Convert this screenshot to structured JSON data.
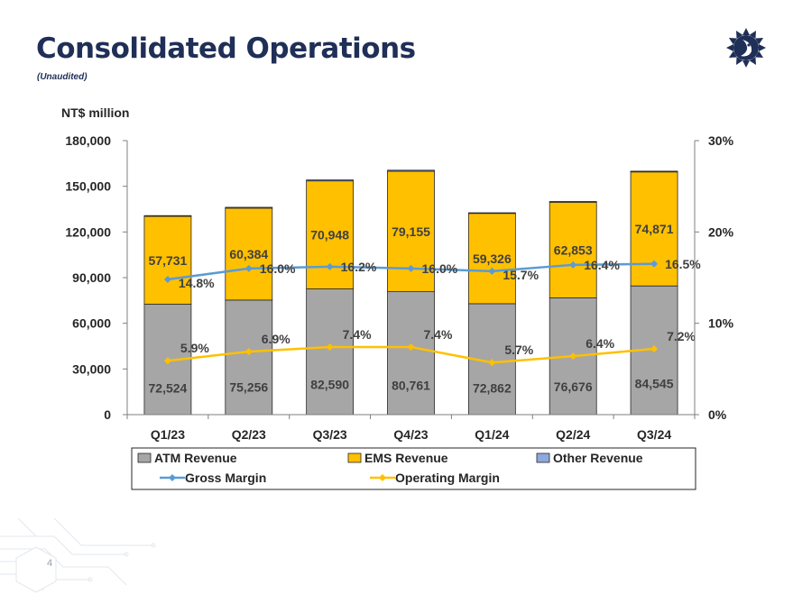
{
  "page": {
    "title": "Consolidated Operations",
    "subtitle": "(Unaudited)",
    "page_number": "4",
    "logo_icon": "sun-logo-icon"
  },
  "chart_data": {
    "type": "bar",
    "stacked": true,
    "categories": [
      "Q1/23",
      "Q2/23",
      "Q3/23",
      "Q4/23",
      "Q1/24",
      "Q2/24",
      "Q3/24"
    ],
    "unit_label": "NT$ million",
    "y_left": {
      "min": 0,
      "max": 180000,
      "ticks": [
        0,
        30000,
        60000,
        90000,
        120000,
        150000,
        180000
      ],
      "tick_labels": [
        "0",
        "30,000",
        "60,000",
        "90,000",
        "120,000",
        "150,000",
        "180,000"
      ]
    },
    "y_right": {
      "min": 0,
      "max": 30,
      "ticks": [
        0,
        10,
        20,
        30
      ],
      "tick_labels": [
        "0%",
        "10%",
        "20%",
        "30%"
      ]
    },
    "series": [
      {
        "name": "ATM Revenue",
        "kind": "bar",
        "color": "#a6a6a6",
        "values": [
          72524,
          75256,
          82590,
          80761,
          72862,
          76676,
          84545
        ],
        "labels": [
          "72,524",
          "75,256",
          "82,590",
          "80,761",
          "72,862",
          "76,676",
          "84,545"
        ]
      },
      {
        "name": "EMS Revenue",
        "kind": "bar",
        "color": "#ffc000",
        "values": [
          57731,
          60384,
          70948,
          79155,
          59326,
          62853,
          74871
        ],
        "labels": [
          "57,731",
          "60,384",
          "70,948",
          "79,155",
          "59,326",
          "62,853",
          "74,871"
        ]
      },
      {
        "name": "Other Revenue",
        "kind": "bar",
        "color": "#8ea9db",
        "values": [
          480,
          560,
          620,
          640,
          420,
          480,
          520
        ],
        "labels": []
      },
      {
        "name": "Gross Margin",
        "kind": "line",
        "axis": "right",
        "color": "#5b9bd5",
        "values": [
          14.8,
          16.0,
          16.2,
          16.0,
          15.7,
          16.4,
          16.5
        ],
        "labels": [
          "14.8%",
          "16.0%",
          "16.2%",
          "16.0%",
          "15.7%",
          "16.4%",
          "16.5%"
        ]
      },
      {
        "name": "Operating Margin",
        "kind": "line",
        "axis": "right",
        "color": "#ffc000",
        "values": [
          5.9,
          6.9,
          7.4,
          7.4,
          5.7,
          6.4,
          7.2
        ],
        "labels": [
          "5.9%",
          "6.9%",
          "7.4%",
          "7.4%",
          "5.7%",
          "6.4%",
          "7.2%"
        ]
      }
    ],
    "legend": {
      "position": "bottom",
      "entries": [
        "ATM Revenue",
        "EMS Revenue",
        "Other Revenue",
        "Gross Margin",
        "Operating Margin"
      ]
    }
  }
}
